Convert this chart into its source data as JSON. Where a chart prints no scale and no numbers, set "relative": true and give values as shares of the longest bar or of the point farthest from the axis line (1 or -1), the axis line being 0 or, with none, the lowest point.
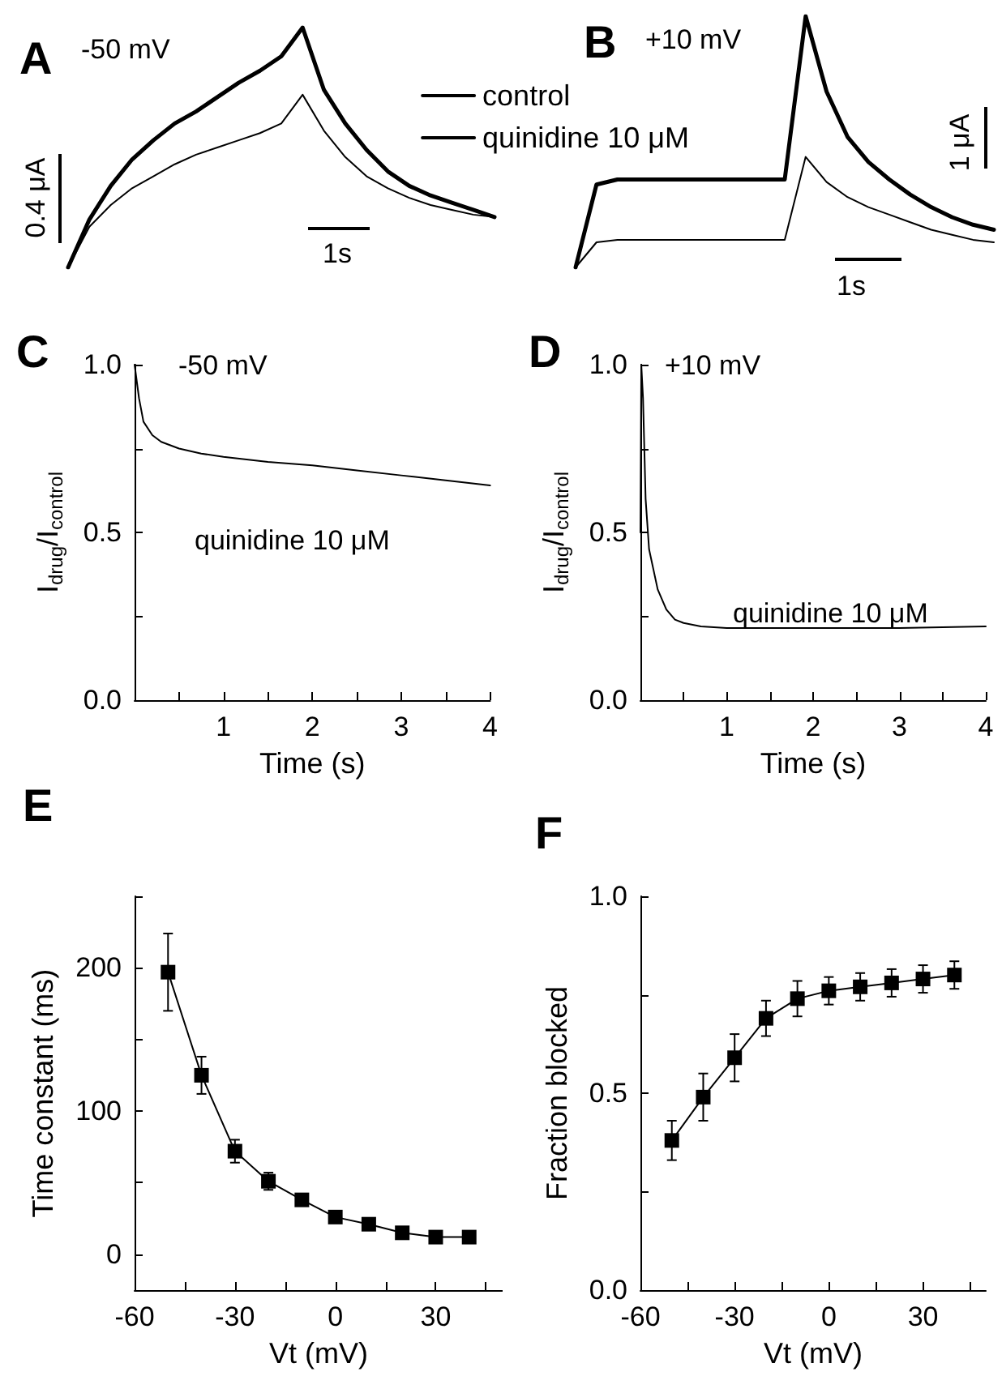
{
  "chart_data": [
    {
      "type": "line",
      "title": "A",
      "relative": true,
      "marker": "none",
      "line_style": "solid",
      "grid": false,
      "legend": "top right",
      "annotations": [
        "-50 mV",
        "0.4 μA",
        "1s"
      ],
      "categories": [
        null,
        null,
        null,
        null,
        null,
        null,
        null,
        null,
        null,
        null,
        null,
        null,
        null,
        null,
        null,
        null,
        null,
        null,
        null,
        null,
        null
      ],
      "series": [
        {
          "name": "control",
          "color": "#000000",
          "values": [
            0,
            0.2,
            0.34,
            0.45,
            0.53,
            0.6,
            0.65,
            0.71,
            0.77,
            0.82,
            0.88,
            1.0,
            0.74,
            0.6,
            0.49,
            0.4,
            0.34,
            0.3,
            0.27,
            0.24,
            0.21
          ]
        },
        {
          "name": "quinidine 10 μM",
          "color": "#000000",
          "values": [
            0,
            0.17,
            0.26,
            0.33,
            0.38,
            0.43,
            0.47,
            0.5,
            0.53,
            0.56,
            0.6,
            0.72,
            0.57,
            0.46,
            0.38,
            0.33,
            0.29,
            0.26,
            0.24,
            0.22,
            0.21
          ]
        }
      ]
    },
    {
      "type": "line",
      "title": "B",
      "relative": true,
      "marker": "none",
      "line_style": "solid",
      "grid": false,
      "annotations": [
        "+10 mV",
        "1 μA",
        "1s"
      ],
      "categories": [
        null,
        null,
        null,
        null,
        null,
        null,
        null,
        null,
        null,
        null,
        null,
        null,
        null,
        null,
        null,
        null,
        null,
        null,
        null,
        null,
        null
      ],
      "series": [
        {
          "color": "#000000",
          "values": [
            0,
            0.33,
            0.35,
            0.35,
            0.35,
            0.35,
            0.35,
            0.35,
            0.35,
            0.35,
            0.35,
            1.0,
            0.7,
            0.52,
            0.42,
            0.35,
            0.29,
            0.24,
            0.2,
            0.17,
            0.15
          ]
        },
        {
          "color": "#000000",
          "values": [
            0,
            0.1,
            0.11,
            0.11,
            0.11,
            0.11,
            0.11,
            0.11,
            0.11,
            0.11,
            0.11,
            0.44,
            0.34,
            0.28,
            0.24,
            0.21,
            0.18,
            0.15,
            0.13,
            0.11,
            0.1
          ]
        }
      ]
    },
    {
      "type": "line",
      "title": "C",
      "xlabel": "Time (s)",
      "ylabel": "I$_{drug}$/I$_{control}$",
      "marker": "none",
      "line_style": "solid",
      "grid": false,
      "annotations": [
        "-50 mV",
        "quinidine 10 μM"
      ],
      "xlim": [
        0,
        4
      ],
      "xticks": [
        {
          "value": 0,
          "label": null
        },
        {
          "value": 0.5,
          "label": null
        },
        1,
        {
          "value": 1.5,
          "label": null
        },
        2,
        {
          "value": 2.5,
          "label": null
        },
        3,
        {
          "value": 3.5,
          "label": null
        },
        4
      ],
      "ylim": [
        0,
        1
      ],
      "yticks": [
        {
          "value": 0,
          "label": "0.0"
        },
        {
          "value": 0.25,
          "label": null
        },
        0.5,
        {
          "value": 0.75,
          "label": null
        },
        {
          "value": 1,
          "label": "1.0"
        }
      ],
      "x": [
        0,
        0.05,
        0.1,
        0.2,
        0.3,
        0.5,
        0.75,
        1,
        1.5,
        2,
        2.5,
        3,
        3.5,
        4
      ],
      "values": [
        1.0,
        0.9,
        0.83,
        0.79,
        0.77,
        0.75,
        0.735,
        0.725,
        0.71,
        0.7,
        0.685,
        0.67,
        0.655,
        0.64
      ],
      "color": "#000000"
    },
    {
      "type": "line",
      "title": "D",
      "xlabel": "Time (s)",
      "ylabel": "I$_{drug}$/I$_{control}$",
      "marker": "none",
      "line_style": "solid",
      "grid": false,
      "annotations": [
        "+10 mV",
        "quinidine 10 μM"
      ],
      "xlim": [
        0,
        4
      ],
      "xticks": [
        {
          "value": 0,
          "label": null
        },
        {
          "value": 0.5,
          "label": null
        },
        1,
        {
          "value": 1.5,
          "label": null
        },
        2,
        {
          "value": 2.5,
          "label": null
        },
        3,
        {
          "value": 3.5,
          "label": null
        },
        4
      ],
      "ylim": [
        0,
        1
      ],
      "yticks": [
        {
          "value": 0,
          "label": "0.0"
        },
        {
          "value": 0.25,
          "label": null
        },
        0.5,
        {
          "value": 0.75,
          "label": null
        },
        {
          "value": 1,
          "label": "1.0"
        }
      ],
      "x": [
        0,
        0.01,
        0.03,
        0.06,
        0.1,
        0.2,
        0.3,
        0.4,
        0.5,
        0.7,
        1,
        2,
        3,
        4
      ],
      "values": [
        0.5,
        1.0,
        0.9,
        0.6,
        0.45,
        0.33,
        0.27,
        0.24,
        0.23,
        0.22,
        0.215,
        0.215,
        0.215,
        0.22
      ],
      "color": "#000000"
    },
    {
      "type": "line",
      "title": "E",
      "xlabel": "Vt (mV)",
      "ylabel": "Time constant (ms)",
      "marker": "square",
      "line_style": "solid",
      "grid": false,
      "xlim": [
        -60,
        50
      ],
      "xticks": [
        -60,
        {
          "value": -45,
          "label": null
        },
        -30,
        {
          "value": -15,
          "label": null
        },
        0,
        {
          "value": 15,
          "label": null
        },
        30,
        {
          "value": 45,
          "label": null
        }
      ],
      "ylim": [
        -25,
        250
      ],
      "yticks": [
        0,
        {
          "value": 50,
          "label": null
        },
        100,
        {
          "value": 150,
          "label": null
        },
        200,
        {
          "value": 250,
          "label": null
        }
      ],
      "x": [
        -50,
        -40,
        -30,
        -20,
        -10,
        0,
        10,
        20,
        30,
        40
      ],
      "values": [
        197,
        125,
        72,
        51,
        38,
        26,
        21,
        15,
        12,
        12
      ],
      "errors": [
        27,
        13,
        8,
        6,
        4,
        null,
        null,
        null,
        null,
        null
      ],
      "color": "#000000"
    },
    {
      "type": "line",
      "title": "F",
      "xlabel": "Vt (mV)",
      "ylabel": "Fraction blocked",
      "marker": "square",
      "line_style": "solid",
      "grid": false,
      "xlim": [
        -60,
        50
      ],
      "xticks": [
        -60,
        {
          "value": -45,
          "label": null
        },
        -30,
        {
          "value": -15,
          "label": null
        },
        0,
        {
          "value": 15,
          "label": null
        },
        30,
        {
          "value": 45,
          "label": null
        }
      ],
      "ylim": [
        0,
        1
      ],
      "yticks": [
        {
          "value": 0,
          "label": "0.0"
        },
        {
          "value": 0.25,
          "label": null
        },
        0.5,
        {
          "value": 0.75,
          "label": null
        },
        {
          "value": 1,
          "label": "1.0"
        }
      ],
      "x": [
        -50,
        -40,
        -30,
        -20,
        -10,
        0,
        10,
        20,
        30,
        40
      ],
      "values": [
        0.38,
        0.49,
        0.59,
        0.69,
        0.74,
        0.76,
        0.77,
        0.78,
        0.79,
        0.8
      ],
      "errors": [
        0.05,
        0.06,
        0.06,
        0.045,
        0.045,
        0.035,
        0.035,
        0.035,
        0.035,
        0.035
      ],
      "color": "#000000"
    }
  ]
}
